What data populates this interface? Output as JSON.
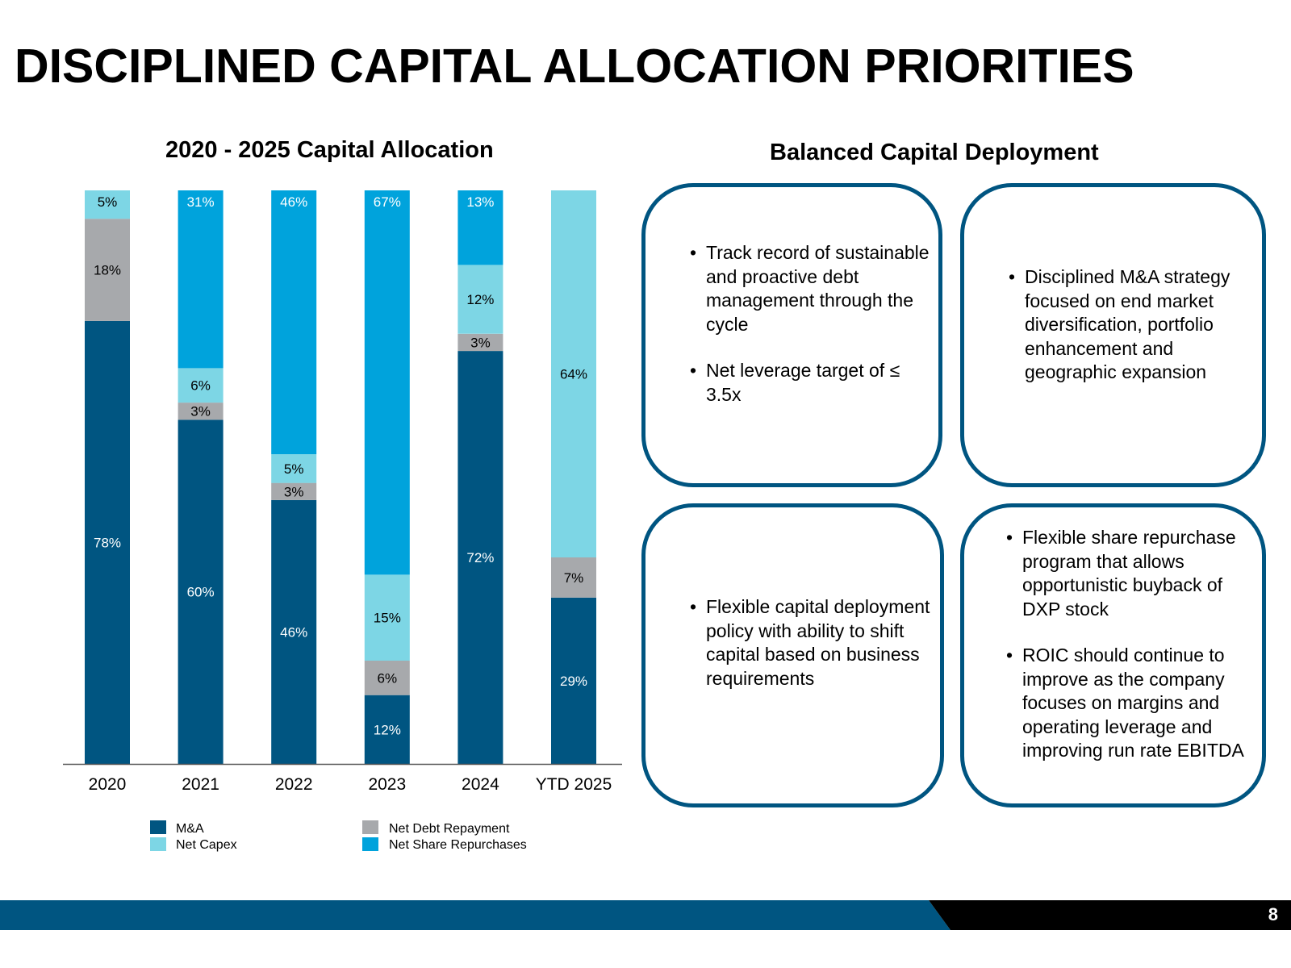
{
  "title": "DISCIPLINED CAPITAL ALLOCATION PRIORITIES",
  "page_number": "8",
  "colors": {
    "ma": "#005581",
    "net_debt_repayment": "#a7a9ac",
    "net_capex": "#7dd6e5",
    "net_share_repurchases": "#00a3dc",
    "box_border": "#005581",
    "footer_blue": "#005581",
    "footer_black": "#000000"
  },
  "chart_data": {
    "type": "bar",
    "stacked": true,
    "title": "2020 - 2025 Capital Allocation",
    "xlabel": "",
    "ylabel": "",
    "ylim": [
      0,
      100
    ],
    "grid": false,
    "legend_position": "bottom",
    "categories": [
      "2020",
      "2021",
      "2022",
      "2023",
      "2024",
      "YTD 2025"
    ],
    "series": [
      {
        "name": "M&A",
        "color_key": "ma",
        "values": [
          78,
          60,
          46,
          12,
          72,
          29
        ],
        "labels": [
          "78%",
          "60%",
          "46%",
          "12%",
          "72%",
          "29%"
        ]
      },
      {
        "name": "Net Debt Repayment",
        "color_key": "net_debt_repayment",
        "values": [
          18,
          3,
          3,
          6,
          3,
          7
        ],
        "labels": [
          "18%",
          "3%",
          "3%",
          "6%",
          "3%",
          "7%"
        ]
      },
      {
        "name": "Net Capex",
        "color_key": "net_capex",
        "values": [
          5,
          6,
          5,
          15,
          12,
          64
        ],
        "labels": [
          "5%",
          "6%",
          "5%",
          "15%",
          "12%",
          "64%"
        ]
      },
      {
        "name": "Net Share Repurchases",
        "color_key": "net_share_repurchases",
        "values": [
          0,
          31,
          46,
          67,
          13,
          0
        ],
        "labels": [
          "",
          "31%",
          "46%",
          "67%",
          "13%",
          ""
        ]
      }
    ],
    "legend": [
      {
        "label": "M&A",
        "color_key": "ma"
      },
      {
        "label": "Net Capex",
        "color_key": "net_capex"
      },
      {
        "label": "Net Debt Repayment",
        "color_key": "net_debt_repayment"
      },
      {
        "label": "Net Share Repurchases",
        "color_key": "net_share_repurchases"
      }
    ]
  },
  "deployment": {
    "title": "Balanced Capital Deployment",
    "boxes": [
      {
        "bullets": [
          "Track record of sustainable and proactive debt management through the cycle",
          "Net leverage target of ≤ 3.5x"
        ]
      },
      {
        "bullets": [
          "Disciplined M&A strategy focused on end market diversification, portfolio enhancement and geographic expansion"
        ]
      },
      {
        "bullets": [
          "Flexible capital deployment policy with ability to shift capital based on business requirements"
        ]
      },
      {
        "bullets": [
          "Flexible share repurchase program that allows opportunistic buyback of DXP stock",
          "ROIC should continue to improve as the company focuses on margins and operating leverage and improving run rate EBITDA"
        ]
      }
    ]
  }
}
